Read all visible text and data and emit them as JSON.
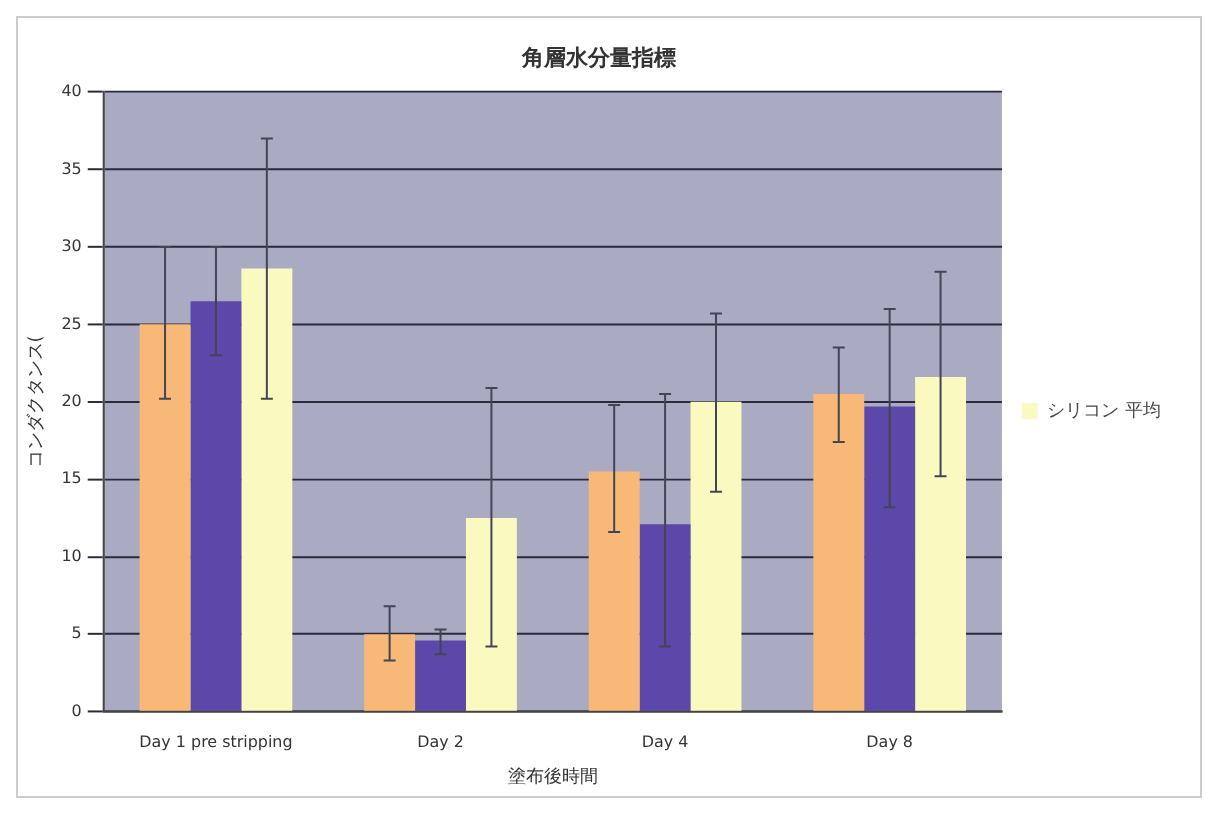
{
  "chart_data": {
    "type": "bar",
    "title": "角層水分量指標",
    "xlabel": "塗布後時間",
    "ylabel": "コンダクタンス(",
    "categories": [
      "Day 1 pre stripping",
      "Day 2",
      "Day 4",
      "Day 8"
    ],
    "series": [
      {
        "color": "#f8b878",
        "values": [
          25,
          5,
          15.5,
          20.5
        ],
        "errors": [
          [
            20.2,
            30
          ],
          [
            3.3,
            6.8
          ],
          [
            11.6,
            19.8
          ],
          [
            17.4,
            23.5
          ]
        ]
      },
      {
        "color": "#5b48a8",
        "values": [
          26.5,
          4.6,
          12.1,
          19.7
        ],
        "errors": [
          [
            23,
            30
          ],
          [
            3.7,
            5.3
          ],
          [
            4.2,
            20.5
          ],
          [
            13.2,
            26
          ]
        ]
      },
      {
        "name": "シリコン 平均",
        "color": "#fafac0",
        "values": [
          28.6,
          12.5,
          20,
          21.6
        ],
        "errors": [
          [
            20.2,
            37
          ],
          [
            4.2,
            20.9
          ],
          [
            14.2,
            25.7
          ],
          [
            15.2,
            28.4
          ]
        ]
      }
    ],
    "ylim": [
      0,
      40
    ],
    "yticks": [
      0,
      5,
      10,
      15,
      20,
      25,
      30,
      35,
      40
    ],
    "grid": "y",
    "legend": "right"
  }
}
